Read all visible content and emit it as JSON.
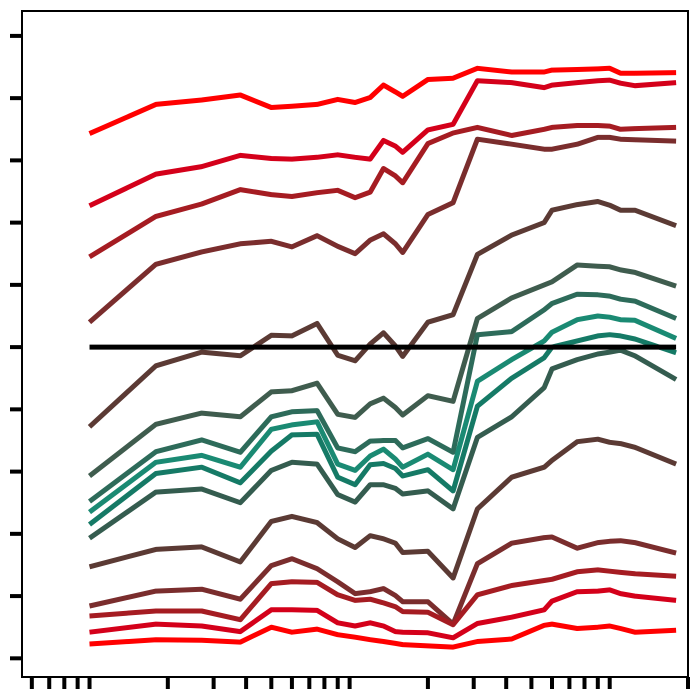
{
  "chart_data": {
    "type": "line",
    "title": "",
    "xlabel": "",
    "ylabel": "",
    "x_scale": "log",
    "x": [
      1,
      1.8,
      2.7,
      3.8,
      5,
      6,
      7.5,
      9,
      10.5,
      12,
      13.5,
      15,
      16,
      20,
      25,
      31,
      42,
      56,
      60,
      75,
      90,
      100,
      110,
      125,
      180
    ],
    "xlim": [
      0.55,
      200
    ],
    "ylim": [
      -5.3,
      5.4
    ],
    "y_ticks_count": 11,
    "x_ticks_count": 30,
    "reference_line": {
      "y": 0,
      "color": "#000000"
    },
    "series": [
      {
        "color": "#ff0000",
        "values": [
          3.43,
          3.9,
          3.97,
          4.05,
          3.85,
          3.87,
          3.9,
          3.98,
          3.93,
          4.01,
          4.21,
          4.1,
          4.03,
          4.3,
          4.32,
          4.48,
          4.42,
          4.42,
          4.45,
          4.46,
          4.47,
          4.48,
          4.4,
          4.4,
          4.41
        ]
      },
      {
        "color": "#d4001a",
        "values": [
          2.27,
          2.78,
          2.9,
          3.08,
          3.03,
          3.02,
          3.05,
          3.09,
          3.05,
          3.02,
          3.32,
          3.23,
          3.13,
          3.49,
          3.58,
          4.28,
          4.25,
          4.17,
          4.21,
          4.25,
          4.28,
          4.29,
          4.24,
          4.2,
          4.25
        ]
      },
      {
        "color": "#a51c22",
        "values": [
          1.45,
          2.1,
          2.3,
          2.53,
          2.45,
          2.42,
          2.48,
          2.52,
          2.4,
          2.49,
          2.87,
          2.75,
          2.64,
          3.27,
          3.44,
          3.53,
          3.4,
          3.5,
          3.53,
          3.56,
          3.56,
          3.55,
          3.5,
          3.51,
          3.53
        ]
      },
      {
        "color": "#7a2d2d",
        "values": [
          0.4,
          1.33,
          1.53,
          1.66,
          1.7,
          1.61,
          1.79,
          1.62,
          1.5,
          1.72,
          1.82,
          1.66,
          1.52,
          2.13,
          2.32,
          3.34,
          3.26,
          3.18,
          3.18,
          3.26,
          3.37,
          3.37,
          3.34,
          3.33,
          3.31
        ]
      },
      {
        "color": "#5b3a34",
        "values": [
          -1.28,
          -0.3,
          -0.08,
          -0.14,
          0.19,
          0.18,
          0.38,
          -0.13,
          -0.22,
          0.05,
          0.23,
          0.02,
          -0.15,
          0.4,
          0.52,
          1.49,
          1.8,
          2.0,
          2.2,
          2.29,
          2.34,
          2.28,
          2.2,
          2.2,
          1.95
        ]
      },
      {
        "color": "#3f5c4e",
        "values": [
          -2.07,
          -1.24,
          -1.06,
          -1.12,
          -0.72,
          -0.7,
          -0.58,
          -1.08,
          -1.13,
          -0.91,
          -0.82,
          -0.97,
          -1.09,
          -0.78,
          -0.87,
          0.46,
          0.79,
          1.0,
          1.05,
          1.32,
          1.3,
          1.29,
          1.24,
          1.2,
          0.98
        ]
      },
      {
        "color": "#2d6b5a",
        "values": [
          -2.48,
          -1.68,
          -1.49,
          -1.69,
          -1.12,
          -1.04,
          -1.02,
          -1.62,
          -1.68,
          -1.51,
          -1.5,
          -1.5,
          -1.62,
          -1.47,
          -1.69,
          0.2,
          0.25,
          0.6,
          0.7,
          0.85,
          0.84,
          0.82,
          0.77,
          0.74,
          0.46
        ]
      },
      {
        "color": "#1a8a73",
        "values": [
          -2.65,
          -1.85,
          -1.74,
          -1.93,
          -1.32,
          -1.25,
          -1.2,
          -1.88,
          -1.98,
          -1.75,
          -1.64,
          -1.8,
          -1.93,
          -1.72,
          -1.97,
          -0.55,
          -0.2,
          0.1,
          0.24,
          0.44,
          0.5,
          0.48,
          0.44,
          0.43,
          0.14
        ]
      },
      {
        "color": "#157a66",
        "values": [
          -2.85,
          -2.03,
          -1.93,
          -2.18,
          -1.67,
          -1.41,
          -1.4,
          -2.09,
          -2.21,
          -1.89,
          -1.87,
          -1.95,
          -2.07,
          -1.97,
          -2.31,
          -0.95,
          -0.5,
          -0.17,
          0.0,
          0.1,
          0.18,
          0.2,
          0.18,
          0.13,
          -0.09
        ]
      },
      {
        "color": "#345c4f",
        "values": [
          -3.07,
          -2.33,
          -2.28,
          -2.5,
          -1.98,
          -1.85,
          -1.88,
          -2.37,
          -2.49,
          -2.21,
          -2.21,
          -2.27,
          -2.36,
          -2.31,
          -2.6,
          -1.45,
          -1.12,
          -0.65,
          -0.35,
          -0.2,
          -0.11,
          -0.08,
          -0.05,
          -0.14,
          -0.52
        ]
      },
      {
        "color": "#5b3a34",
        "values": [
          -3.53,
          -3.25,
          -3.21,
          -3.45,
          -2.8,
          -2.72,
          -2.82,
          -3.08,
          -3.22,
          -3.03,
          -3.08,
          -3.15,
          -3.3,
          -3.28,
          -3.71,
          -2.6,
          -2.09,
          -1.93,
          -1.82,
          -1.52,
          -1.48,
          -1.53,
          -1.55,
          -1.61,
          -1.88
        ]
      },
      {
        "color": "#7a2d2d",
        "values": [
          -4.16,
          -3.92,
          -3.89,
          -4.05,
          -3.51,
          -3.4,
          -3.56,
          -3.77,
          -3.96,
          -3.93,
          -3.88,
          -3.99,
          -4.09,
          -4.09,
          -4.45,
          -3.48,
          -3.15,
          -3.06,
          -3.05,
          -3.23,
          -3.14,
          -3.12,
          -3.11,
          -3.14,
          -3.31
        ]
      },
      {
        "color": "#a51c22",
        "values": [
          -4.32,
          -4.24,
          -4.24,
          -4.38,
          -3.8,
          -3.77,
          -3.78,
          -3.98,
          -4.07,
          -4.05,
          -4.11,
          -4.17,
          -4.25,
          -4.26,
          -4.46,
          -3.98,
          -3.83,
          -3.75,
          -3.73,
          -3.61,
          -3.58,
          -3.6,
          -3.62,
          -3.64,
          -3.68
        ]
      },
      {
        "color": "#d4001a",
        "values": [
          -4.58,
          -4.45,
          -4.48,
          -4.57,
          -4.22,
          -4.22,
          -4.23,
          -4.43,
          -4.48,
          -4.43,
          -4.48,
          -4.57,
          -4.58,
          -4.59,
          -4.67,
          -4.44,
          -4.34,
          -4.22,
          -4.08,
          -3.93,
          -3.92,
          -3.9,
          -3.96,
          -4.0,
          -4.07
        ]
      },
      {
        "color": "#ff0000",
        "values": [
          -4.77,
          -4.7,
          -4.71,
          -4.74,
          -4.5,
          -4.58,
          -4.53,
          -4.62,
          -4.66,
          -4.7,
          -4.73,
          -4.76,
          -4.78,
          -4.8,
          -4.82,
          -4.73,
          -4.69,
          -4.47,
          -4.45,
          -4.52,
          -4.5,
          -4.48,
          -4.52,
          -4.58,
          -4.55
        ]
      }
    ]
  }
}
